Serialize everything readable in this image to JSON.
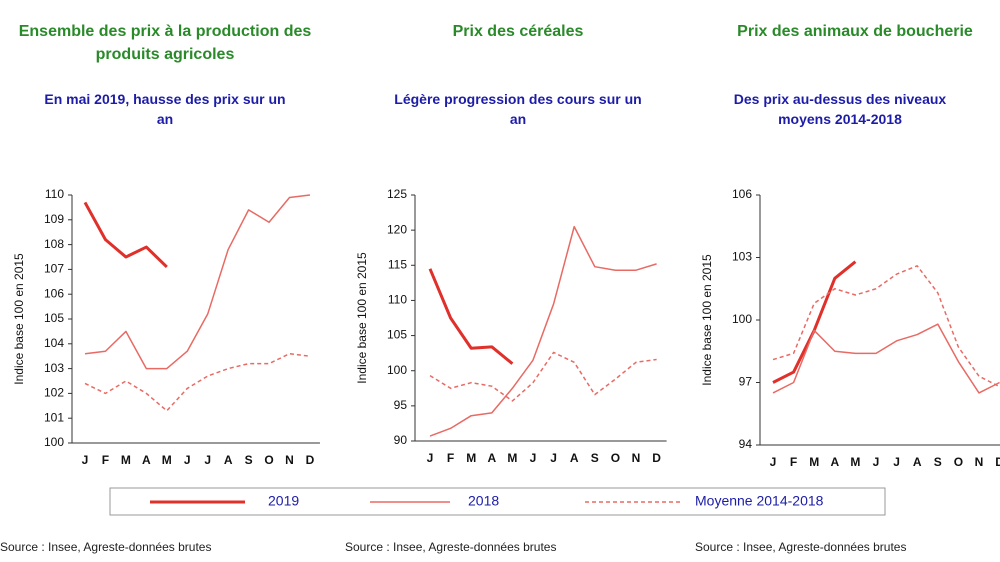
{
  "chart_data": [
    {
      "type": "line",
      "title": "Ensemble des prix à la production des produits agricoles",
      "subtitle": "En mai 2019, hausse des prix sur un an",
      "y_label": "Indice base 100 en 2015",
      "source": "Source : Insee, Agreste-données brutes",
      "categories": [
        "J",
        "F",
        "M",
        "A",
        "M",
        "J",
        "J",
        "A",
        "S",
        "O",
        "N",
        "D"
      ],
      "ylim": [
        100,
        110
      ],
      "yticks": [
        100,
        101,
        102,
        103,
        104,
        105,
        106,
        107,
        108,
        109,
        110
      ],
      "series": [
        {
          "name": "2019",
          "color": "#e0302a",
          "linewidth": 3,
          "linestyle": "solid",
          "values": [
            109.7,
            108.2,
            107.5,
            107.9,
            107.1,
            null,
            null,
            null,
            null,
            null,
            null,
            null
          ]
        },
        {
          "name": "2018",
          "color": "#e86a64",
          "linewidth": 1.5,
          "linestyle": "solid",
          "values": [
            103.6,
            103.7,
            104.5,
            103.0,
            103.0,
            103.7,
            105.2,
            107.8,
            109.4,
            108.9,
            109.9,
            110.0
          ]
        },
        {
          "name": "Moyenne 2014-2018",
          "color": "#e86a64",
          "linewidth": 1.5,
          "linestyle": "dashed",
          "values": [
            102.4,
            102.0,
            102.5,
            102.0,
            101.3,
            102.2,
            102.7,
            103.0,
            103.2,
            103.2,
            103.6,
            103.5
          ]
        }
      ]
    },
    {
      "type": "line",
      "title": "Prix des céréales",
      "subtitle": "Légère progression des cours sur un an",
      "y_label": "Indice base 100 en 2015",
      "source": "Source : Insee, Agreste-données brutes",
      "categories": [
        "J",
        "F",
        "M",
        "A",
        "M",
        "J",
        "J",
        "A",
        "S",
        "O",
        "N",
        "D"
      ],
      "ylim": [
        90,
        125
      ],
      "yticks": [
        90,
        95,
        100,
        105,
        110,
        115,
        120,
        125
      ],
      "series": [
        {
          "color": "#e0302a",
          "linewidth": 3,
          "linestyle": "solid",
          "values": [
            114.5,
            107.5,
            103.2,
            103.4,
            101.0,
            null,
            null,
            null,
            null,
            null,
            null,
            null
          ]
        },
        {
          "color": "#e86a64",
          "linewidth": 1.5,
          "linestyle": "solid",
          "values": [
            90.7,
            91.8,
            93.6,
            94.0,
            97.5,
            101.5,
            109.5,
            120.5,
            114.8,
            114.3,
            114.3,
            115.2
          ]
        },
        {
          "color": "#e86a64",
          "linewidth": 1.5,
          "linestyle": "dashed",
          "values": [
            99.3,
            97.5,
            98.3,
            97.8,
            95.7,
            98.3,
            102.6,
            101.2,
            96.6,
            98.8,
            101.2,
            101.6
          ]
        }
      ]
    },
    {
      "type": "line",
      "title": "Prix des animaux de boucherie",
      "subtitle": "Des prix au-dessus des niveaux moyens 2014-2018",
      "y_label": "Indice base 100 en 2015",
      "source": "Source : Insee, Agreste-données brutes",
      "categories": [
        "J",
        "F",
        "M",
        "A",
        "M",
        "J",
        "J",
        "A",
        "S",
        "O",
        "N",
        "D"
      ],
      "ylim": [
        94,
        106
      ],
      "yticks": [
        94,
        97,
        100,
        103,
        106
      ],
      "series": [
        {
          "color": "#e0302a",
          "linewidth": 3,
          "linestyle": "solid",
          "values": [
            97.0,
            97.5,
            99.5,
            102.0,
            102.8,
            null,
            null,
            null,
            null,
            null,
            null,
            null
          ]
        },
        {
          "color": "#e86a64",
          "linewidth": 1.5,
          "linestyle": "solid",
          "values": [
            96.5,
            97.0,
            99.5,
            98.5,
            98.4,
            98.4,
            99.0,
            99.3,
            99.8,
            98.0,
            96.5,
            97.0
          ]
        },
        {
          "color": "#e86a64",
          "linewidth": 1.5,
          "linestyle": "dashed",
          "values": [
            98.1,
            98.4,
            100.8,
            101.5,
            101.2,
            101.5,
            102.2,
            102.6,
            101.3,
            98.7,
            97.3,
            96.8
          ]
        }
      ]
    }
  ]
}
